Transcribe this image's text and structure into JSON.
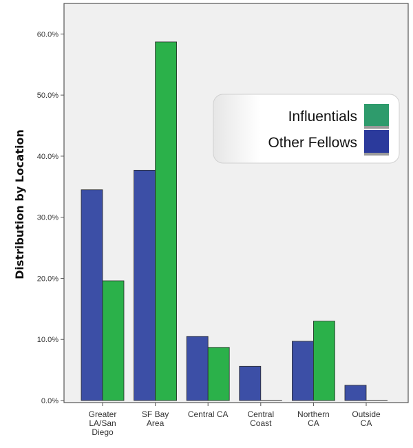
{
  "chart_data": {
    "type": "bar",
    "title": "",
    "xlabel": "",
    "ylabel": "Distribution by Location",
    "categories": [
      [
        "Greater",
        "LA/San",
        "Diego"
      ],
      [
        "SF Bay",
        "Area"
      ],
      [
        "Central CA"
      ],
      [
        "Central",
        "Coast"
      ],
      [
        "Northern",
        "CA"
      ],
      [
        "Outside",
        "CA"
      ]
    ],
    "series": [
      {
        "name": "Other Fellows",
        "values": [
          34.5,
          37.7,
          10.5,
          5.6,
          9.7,
          2.5
        ],
        "color": "#3c4fa6"
      },
      {
        "name": "Influentials",
        "values": [
          19.6,
          58.7,
          8.7,
          0.0,
          13.0,
          0.0
        ],
        "color": "#2bb14a"
      }
    ],
    "ylim": [
      0,
      65
    ],
    "yticks": [
      0,
      10,
      20,
      30,
      40,
      50,
      60
    ],
    "ytick_labels": [
      "0.0%",
      "10.0%",
      "20.0%",
      "30.0%",
      "40.0%",
      "50.0%",
      "60.0%"
    ],
    "grid": false,
    "plot_background": "#f0f0f0",
    "legend": {
      "placement": "upper-right",
      "entries": [
        {
          "label": "Influentials",
          "color": "#2e9b6c"
        },
        {
          "label": "Other Fellows",
          "color": "#2b3a9c"
        }
      ]
    }
  }
}
